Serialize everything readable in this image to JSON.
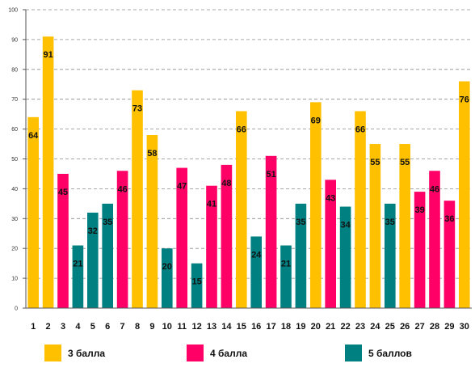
{
  "chart_data": {
    "type": "bar",
    "categories": [
      "1",
      "2",
      "3",
      "4",
      "5",
      "6",
      "7",
      "8",
      "9",
      "10",
      "11",
      "12",
      "13",
      "14",
      "15",
      "16",
      "17",
      "18",
      "19",
      "20",
      "21",
      "22",
      "23",
      "24",
      "25",
      "26",
      "27",
      "28",
      "29",
      "30"
    ],
    "values": [
      64,
      91,
      45,
      21,
      32,
      35,
      46,
      73,
      58,
      20,
      47,
      15,
      41,
      48,
      66,
      24,
      51,
      21,
      35,
      69,
      43,
      34,
      66,
      55,
      35,
      55,
      39,
      46,
      36,
      76
    ],
    "groups": [
      "g3",
      "g3",
      "g4",
      "g5",
      "g5",
      "g5",
      "g4",
      "g3",
      "g3",
      "g5",
      "g4",
      "g5",
      "g4",
      "g4",
      "g3",
      "g5",
      "g4",
      "g5",
      "g5",
      "g3",
      "g4",
      "g5",
      "g3",
      "g3",
      "g5",
      "g3",
      "g4",
      "g4",
      "g4",
      "g3"
    ],
    "legend": [
      {
        "key": "g3",
        "name": "3 балла",
        "color": "#FFC000"
      },
      {
        "key": "g4",
        "name": "4 балла",
        "color": "#FF0066"
      },
      {
        "key": "g5",
        "name": "5 баллов",
        "color": "#008080"
      }
    ],
    "yticks": [
      "0",
      "10",
      "20",
      "30",
      "40",
      "50",
      "60",
      "70",
      "80",
      "90",
      "100"
    ],
    "ylim": [
      0,
      100
    ],
    "grid": true,
    "legend_placement": "bottom",
    "title": "",
    "xlabel": "",
    "ylabel": ""
  }
}
